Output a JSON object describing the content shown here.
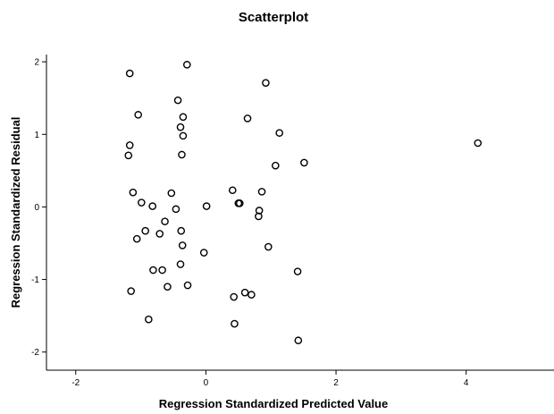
{
  "chart_data": {
    "type": "scatter",
    "title": "Scatterplot",
    "xlabel": "Regression Standardized Predicted Value",
    "ylabel": "Regression Standardized Residual",
    "xlim": [
      -2.45,
      5.35
    ],
    "ylim": [
      -2.25,
      2.1
    ],
    "xticks": [
      {
        "value": -2,
        "label": "-2"
      },
      {
        "value": 0,
        "label": "0"
      },
      {
        "value": 2,
        "label": "2"
      },
      {
        "value": 4,
        "label": "4"
      }
    ],
    "yticks": [
      {
        "value": -2,
        "label": "-2"
      },
      {
        "value": -1,
        "label": "-1"
      },
      {
        "value": 0,
        "label": "0"
      },
      {
        "value": 1,
        "label": "1"
      },
      {
        "value": 2,
        "label": "2"
      }
    ],
    "grid": false,
    "marker_color": "#000000",
    "points": [
      {
        "x": -1.17,
        "y": 1.84
      },
      {
        "x": -1.17,
        "y": 0.85
      },
      {
        "x": -1.19,
        "y": 0.71
      },
      {
        "x": -1.12,
        "y": 0.2
      },
      {
        "x": -1.15,
        "y": -1.16
      },
      {
        "x": -1.04,
        "y": 1.27
      },
      {
        "x": -0.99,
        "y": 0.06
      },
      {
        "x": -1.06,
        "y": -0.44
      },
      {
        "x": -0.93,
        "y": -0.33
      },
      {
        "x": -0.88,
        "y": -1.55
      },
      {
        "x": -0.82,
        "y": 0.01
      },
      {
        "x": -0.81,
        "y": -0.87
      },
      {
        "x": -0.71,
        "y": -0.37
      },
      {
        "x": -0.67,
        "y": -0.87
      },
      {
        "x": -0.63,
        "y": -0.2
      },
      {
        "x": -0.59,
        "y": -1.1
      },
      {
        "x": -0.53,
        "y": 0.19
      },
      {
        "x": -0.46,
        "y": -0.03
      },
      {
        "x": -0.43,
        "y": 1.47
      },
      {
        "x": -0.39,
        "y": 1.1
      },
      {
        "x": -0.35,
        "y": 1.24
      },
      {
        "x": -0.35,
        "y": 0.98
      },
      {
        "x": -0.37,
        "y": 0.72
      },
      {
        "x": -0.38,
        "y": -0.33
      },
      {
        "x": -0.36,
        "y": -0.53
      },
      {
        "x": -0.39,
        "y": -0.79
      },
      {
        "x": -0.29,
        "y": 1.96
      },
      {
        "x": -0.28,
        "y": -1.08
      },
      {
        "x": 0.01,
        "y": 0.01
      },
      {
        "x": -0.03,
        "y": -0.63
      },
      {
        "x": 0.41,
        "y": 0.23
      },
      {
        "x": 0.5,
        "y": 0.05
      },
      {
        "x": 0.52,
        "y": 0.05
      },
      {
        "x": 0.43,
        "y": -1.24
      },
      {
        "x": 0.44,
        "y": -1.61
      },
      {
        "x": 0.6,
        "y": -1.18
      },
      {
        "x": 0.7,
        "y": -1.21
      },
      {
        "x": 0.64,
        "y": 1.22
      },
      {
        "x": 0.82,
        "y": -0.05
      },
      {
        "x": 0.81,
        "y": -0.13
      },
      {
        "x": 0.86,
        "y": 0.21
      },
      {
        "x": 0.92,
        "y": 1.71
      },
      {
        "x": 0.96,
        "y": -0.55
      },
      {
        "x": 1.07,
        "y": 0.57
      },
      {
        "x": 1.13,
        "y": 1.02
      },
      {
        "x": 1.41,
        "y": -0.89
      },
      {
        "x": 1.42,
        "y": -1.84
      },
      {
        "x": 1.51,
        "y": 0.61
      },
      {
        "x": 4.18,
        "y": 0.88
      }
    ]
  }
}
